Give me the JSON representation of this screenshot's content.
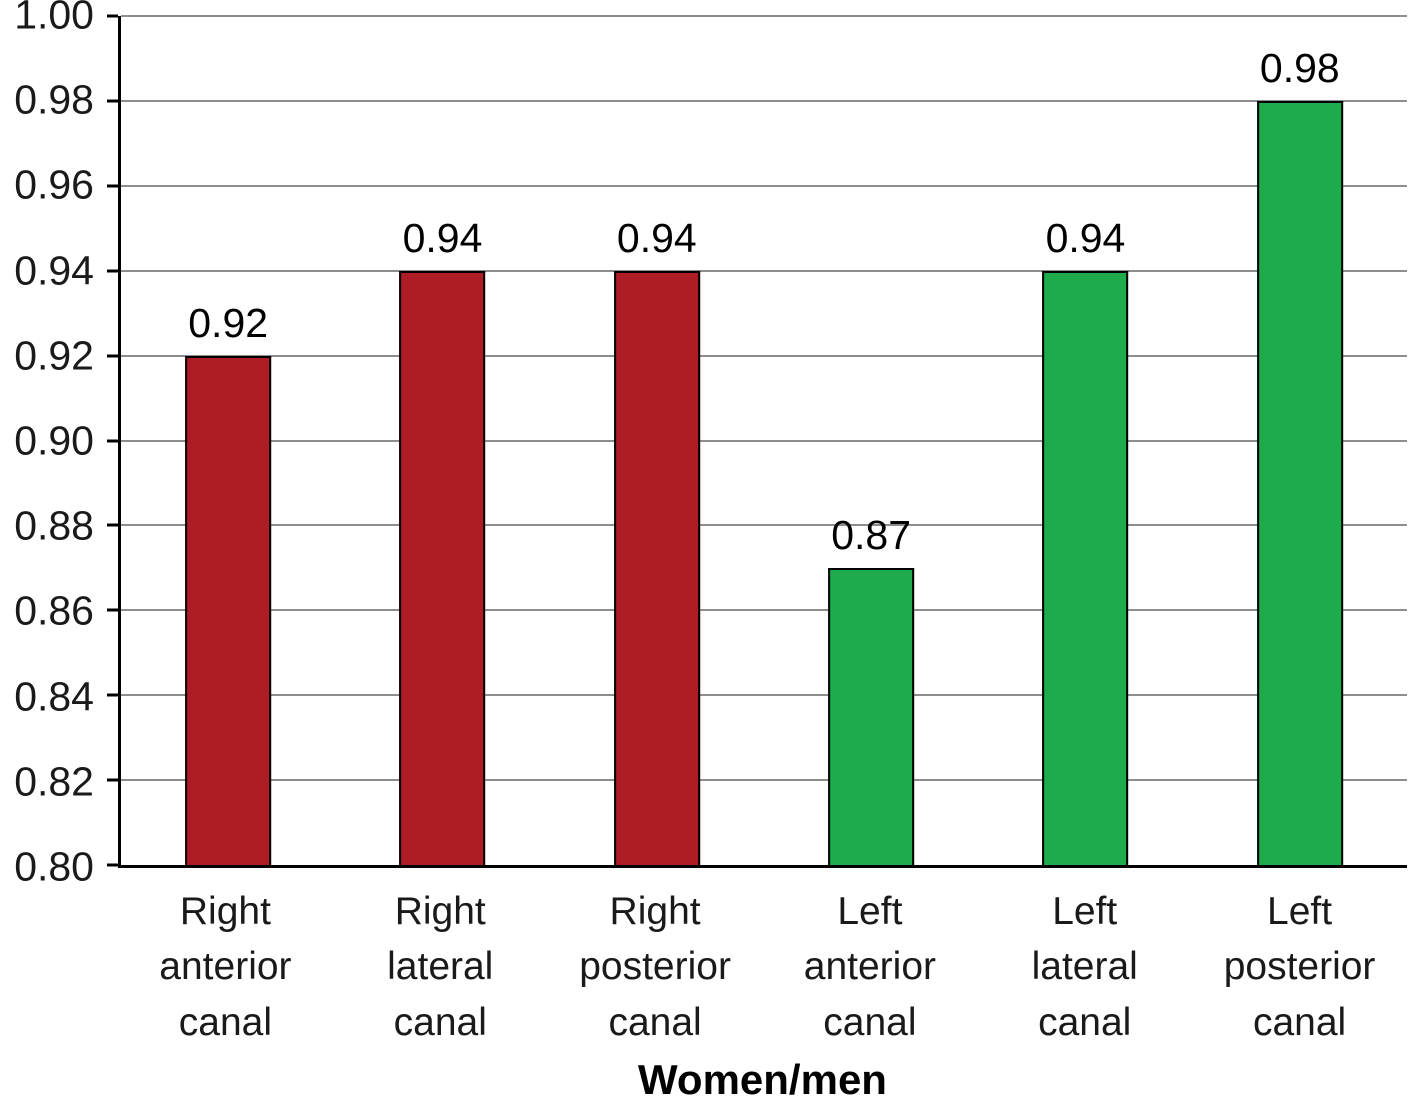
{
  "chart_data": {
    "type": "bar",
    "categories": [
      "Right anterior canal",
      "Right lateral canal",
      "Right posterior canal",
      "Left anterior canal",
      "Left lateral canal",
      "Left posterior canal"
    ],
    "values": [
      0.92,
      0.94,
      0.94,
      0.87,
      0.94,
      0.98
    ],
    "value_labels": [
      "0.92",
      "0.94",
      "0.94",
      "0.87",
      "0.94",
      "0.98"
    ],
    "bar_colors": [
      "#ae1c26",
      "#ae1c26",
      "#ae1c26",
      "#1dab4c",
      "#1dab4c",
      "#1dab4c"
    ],
    "title": "",
    "xlabel": "Women/men",
    "ylabel": "",
    "ylim": [
      0.8,
      1.0
    ],
    "ytick_step": 0.02,
    "ytick_labels": [
      "0.80",
      "0.82",
      "0.84",
      "0.86",
      "0.88",
      "0.90",
      "0.92",
      "0.94",
      "0.96",
      "0.98",
      "1.00"
    ],
    "grid": true,
    "legend": "none",
    "gridline_color": "#8d8d8d",
    "axis_color": "#000000"
  }
}
